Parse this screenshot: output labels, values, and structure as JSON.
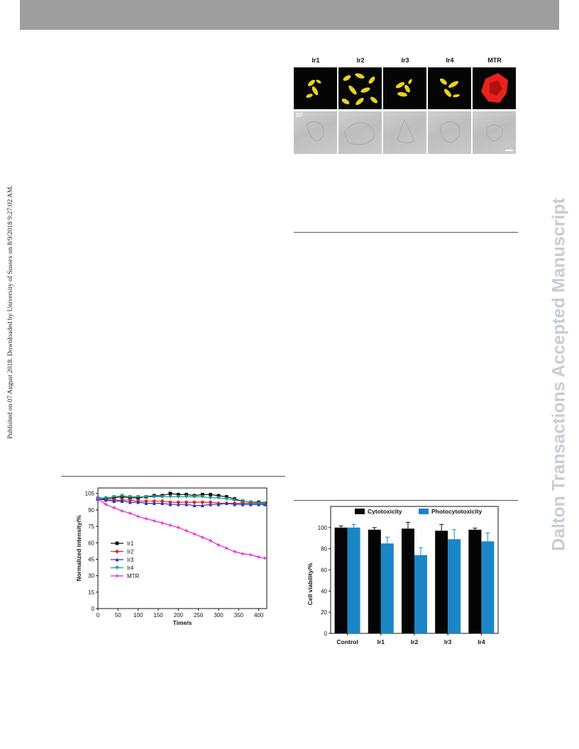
{
  "side_text": {
    "published_line": "Published on 07 August 2018. Downloaded by University of Sussex on 8/9/2018 9:27:02 AM.",
    "watermark": "Dalton Transactions Accepted Manuscript"
  },
  "microscopy_figure": {
    "panel_labels": [
      "Ir1",
      "Ir2",
      "Ir3",
      "Ir4",
      "MTR"
    ],
    "bf_label": "BF",
    "colors": {
      "ir_stain": "#e6d21e",
      "mtr_stain": "#e8231e",
      "background": "#050505"
    }
  },
  "chart_data": [
    {
      "type": "line",
      "ylabel": "Normalized intensity/%",
      "xlabel": "Time/s",
      "xlim": [
        0,
        420
      ],
      "ylim": [
        0,
        110
      ],
      "x_ticks": [
        0,
        50,
        100,
        150,
        200,
        250,
        300,
        350,
        400
      ],
      "y_ticks": [
        0,
        15,
        30,
        45,
        60,
        75,
        90,
        105
      ],
      "legend_position": "left-middle",
      "x": [
        0,
        20,
        40,
        60,
        80,
        100,
        120,
        140,
        160,
        180,
        200,
        220,
        240,
        260,
        280,
        300,
        320,
        340,
        360,
        380,
        400,
        415
      ],
      "series": [
        {
          "name": "Ir1",
          "color": "#111111",
          "marker": "square",
          "values": [
            100,
            100,
            101,
            102,
            101,
            101,
            102,
            103,
            103,
            105,
            104,
            104,
            103,
            104,
            104,
            103,
            102,
            100,
            98,
            97,
            97,
            96
          ]
        },
        {
          "name": "Ir2",
          "color": "#e8231e",
          "marker": "circle",
          "values": [
            100,
            99,
            99,
            99,
            99,
            98,
            98,
            98,
            98,
            97,
            97,
            97,
            97,
            97,
            97,
            96,
            96,
            96,
            96,
            96,
            95,
            95
          ]
        },
        {
          "name": "Ir3",
          "color": "#1f2fd6",
          "marker": "triangle-up",
          "values": [
            100,
            99,
            98,
            98,
            97,
            97,
            96,
            96,
            96,
            95,
            95,
            95,
            94,
            94,
            95,
            95,
            96,
            95,
            95,
            95,
            95,
            95
          ]
        },
        {
          "name": "Ir4",
          "color": "#1a9a8a",
          "marker": "triangle-down",
          "values": [
            101,
            101,
            102,
            103,
            102,
            102,
            102,
            102,
            102,
            102,
            102,
            102,
            102,
            102,
            101,
            101,
            100,
            99,
            98,
            97,
            96,
            96
          ]
        },
        {
          "name": "MTR",
          "color": "#e81fd2",
          "marker": "star",
          "values": [
            100,
            95,
            92,
            89,
            87,
            84,
            82,
            80,
            78,
            76,
            74,
            71,
            68,
            65,
            62,
            58,
            55,
            52,
            50,
            49,
            47,
            46
          ]
        }
      ]
    },
    {
      "type": "bar",
      "ylabel": "Cell viability/%",
      "categories": [
        "Control",
        "Ir1",
        "Ir2",
        "Ir3",
        "Ir4"
      ],
      "ylim": [
        0,
        120
      ],
      "y_ticks": [
        0,
        20,
        40,
        60,
        80,
        100
      ],
      "legend_position": "top",
      "series": [
        {
          "name": "Cytotoxicity",
          "color": "#050505",
          "values": [
            100,
            98,
            99,
            97,
            98
          ],
          "errors": [
            1.5,
            2,
            6,
            6,
            1.5
          ]
        },
        {
          "name": "Photocytotoxicity",
          "color": "#1a86c8",
          "values": [
            100,
            85,
            74,
            89,
            87
          ],
          "errors": [
            3,
            6,
            7,
            9,
            8
          ]
        }
      ]
    }
  ]
}
